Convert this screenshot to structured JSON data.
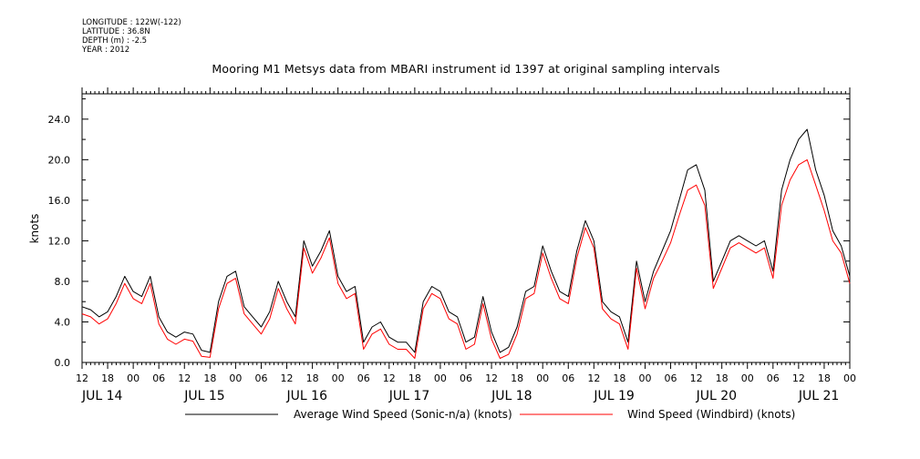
{
  "header": {
    "longitude": "LONGITUDE : 122W(-122)",
    "latitude": "LATITUDE : 36.8N",
    "depth": "DEPTH (m) : -2.5",
    "year": "YEAR : 2012",
    "title": "Mooring M1 Metsys data from MBARI instrument id 1397 at original sampling intervals"
  },
  "chart_data": {
    "type": "line",
    "title": "Mooring M1 Metsys data from MBARI instrument id 1397 at original sampling intervals",
    "xlabel": "",
    "ylabel": "knots",
    "x_unit": "hours since JUL 14 12:00, 2012",
    "xlim": [
      0,
      180
    ],
    "ylim": [
      0,
      26.5
    ],
    "yticks": [
      0.0,
      4.0,
      8.0,
      12.0,
      16.0,
      20.0,
      24.0
    ],
    "ytick_labels": [
      "0.0",
      "4.0",
      "8.0",
      "12.0",
      "16.0",
      "20.0",
      "24.0"
    ],
    "xtick_hours": [
      0,
      6,
      12,
      18,
      24,
      30,
      36,
      42,
      48,
      54,
      60,
      66,
      72,
      78,
      84,
      90,
      96,
      102,
      108,
      114,
      120,
      126,
      132,
      138,
      144,
      150,
      156,
      162,
      168,
      174,
      180
    ],
    "xtick_labels": [
      "12",
      "18",
      "00",
      "06",
      "12",
      "18",
      "00",
      "06",
      "12",
      "18",
      "00",
      "06",
      "12",
      "18",
      "00",
      "06",
      "12",
      "18",
      "00",
      "06",
      "12",
      "18",
      "00",
      "06",
      "12",
      "18",
      "00",
      "06",
      "12",
      "18",
      "00"
    ],
    "day_labels": [
      {
        "hour": 0,
        "text": "JUL 14"
      },
      {
        "hour": 24,
        "text": "JUL 15"
      },
      {
        "hour": 48,
        "text": "JUL 16"
      },
      {
        "hour": 72,
        "text": "JUL 17"
      },
      {
        "hour": 96,
        "text": "JUL 18"
      },
      {
        "hour": 120,
        "text": "JUL 19"
      },
      {
        "hour": 144,
        "text": "JUL 20"
      },
      {
        "hour": 168,
        "text": "JUL 21"
      }
    ],
    "legend_placement": "bottom",
    "grid": false,
    "series": [
      {
        "name": "Average Wind Speed (Sonic-n/a) (knots)",
        "color": "#000000",
        "x": [
          0,
          2,
          4,
          6,
          8,
          10,
          12,
          14,
          16,
          18,
          20,
          22,
          24,
          26,
          28,
          30,
          32,
          34,
          36,
          38,
          40,
          42,
          44,
          46,
          48,
          50,
          52,
          54,
          56,
          58,
          60,
          62,
          64,
          66,
          68,
          70,
          72,
          74,
          76,
          78,
          80,
          82,
          84,
          86,
          88,
          90,
          92,
          94,
          96,
          98,
          100,
          102,
          104,
          106,
          108,
          110,
          112,
          114,
          116,
          118,
          120,
          122,
          124,
          126,
          128,
          130,
          132,
          134,
          136,
          138,
          140,
          142,
          144,
          146,
          148,
          150,
          152,
          154,
          156,
          158,
          160,
          162,
          164,
          166,
          168,
          170,
          172,
          174,
          176,
          178,
          180
        ],
        "y": [
          5.5,
          5.2,
          4.5,
          5.0,
          6.5,
          8.5,
          7.0,
          6.5,
          8.5,
          4.5,
          3.0,
          2.5,
          3.0,
          2.8,
          1.2,
          1.0,
          6.0,
          8.5,
          9.0,
          5.5,
          4.5,
          3.5,
          5.0,
          8.0,
          6.0,
          4.5,
          12.0,
          9.5,
          11.0,
          13.0,
          8.5,
          7.0,
          7.5,
          2.0,
          3.5,
          4.0,
          2.5,
          2.0,
          2.0,
          1.0,
          6.0,
          7.5,
          7.0,
          5.0,
          4.5,
          2.0,
          2.5,
          6.5,
          3.0,
          1.0,
          1.5,
          3.5,
          7.0,
          7.5,
          11.5,
          9.0,
          7.0,
          6.5,
          11.0,
          14.0,
          12.0,
          6.0,
          5.0,
          4.5,
          2.0,
          10.0,
          6.0,
          9.0,
          11.0,
          13.0,
          16.0,
          19.0,
          19.5,
          17.0,
          8.0,
          10.0,
          12.0,
          12.5,
          12.0,
          11.5,
          12.0,
          9.0,
          17.0,
          20.0,
          22.0,
          23.0,
          19.0,
          16.5,
          13.0,
          11.5,
          8.5
        ]
      },
      {
        "name": "Wind Speed (Windbird) (knots)",
        "color": "#ff0000",
        "x": [
          0,
          2,
          4,
          6,
          8,
          10,
          12,
          14,
          16,
          18,
          20,
          22,
          24,
          26,
          28,
          30,
          32,
          34,
          36,
          38,
          40,
          42,
          44,
          46,
          48,
          50,
          52,
          54,
          56,
          58,
          60,
          62,
          64,
          66,
          68,
          70,
          72,
          74,
          76,
          78,
          80,
          82,
          84,
          86,
          88,
          90,
          92,
          94,
          96,
          98,
          100,
          102,
          104,
          106,
          108,
          110,
          112,
          114,
          116,
          118,
          120,
          122,
          124,
          126,
          128,
          130,
          132,
          134,
          136,
          138,
          140,
          142,
          144,
          146,
          148,
          150,
          152,
          154,
          156,
          158,
          160,
          162,
          164,
          166,
          168,
          170,
          172,
          174,
          176,
          178,
          180
        ],
        "y": [
          4.8,
          4.5,
          3.8,
          4.3,
          5.8,
          7.8,
          6.3,
          5.8,
          7.8,
          3.8,
          2.3,
          1.8,
          2.3,
          2.1,
          0.6,
          0.5,
          5.3,
          7.8,
          8.3,
          4.8,
          3.8,
          2.8,
          4.3,
          7.3,
          5.3,
          3.8,
          11.3,
          8.8,
          10.3,
          12.3,
          7.8,
          6.3,
          6.8,
          1.3,
          2.8,
          3.3,
          1.8,
          1.3,
          1.3,
          0.4,
          5.3,
          6.8,
          6.3,
          4.3,
          3.8,
          1.3,
          1.8,
          5.8,
          2.3,
          0.4,
          0.8,
          2.8,
          6.3,
          6.8,
          10.8,
          8.3,
          6.3,
          5.8,
          10.3,
          13.3,
          11.3,
          5.3,
          4.3,
          3.8,
          1.3,
          9.3,
          5.3,
          8.3,
          10.0,
          11.8,
          14.5,
          17.0,
          17.5,
          15.5,
          7.3,
          9.3,
          11.3,
          11.8,
          11.3,
          10.8,
          11.3,
          8.3,
          15.5,
          18.0,
          19.5,
          20.0,
          17.5,
          15.0,
          12.0,
          10.8,
          7.8
        ]
      }
    ]
  }
}
